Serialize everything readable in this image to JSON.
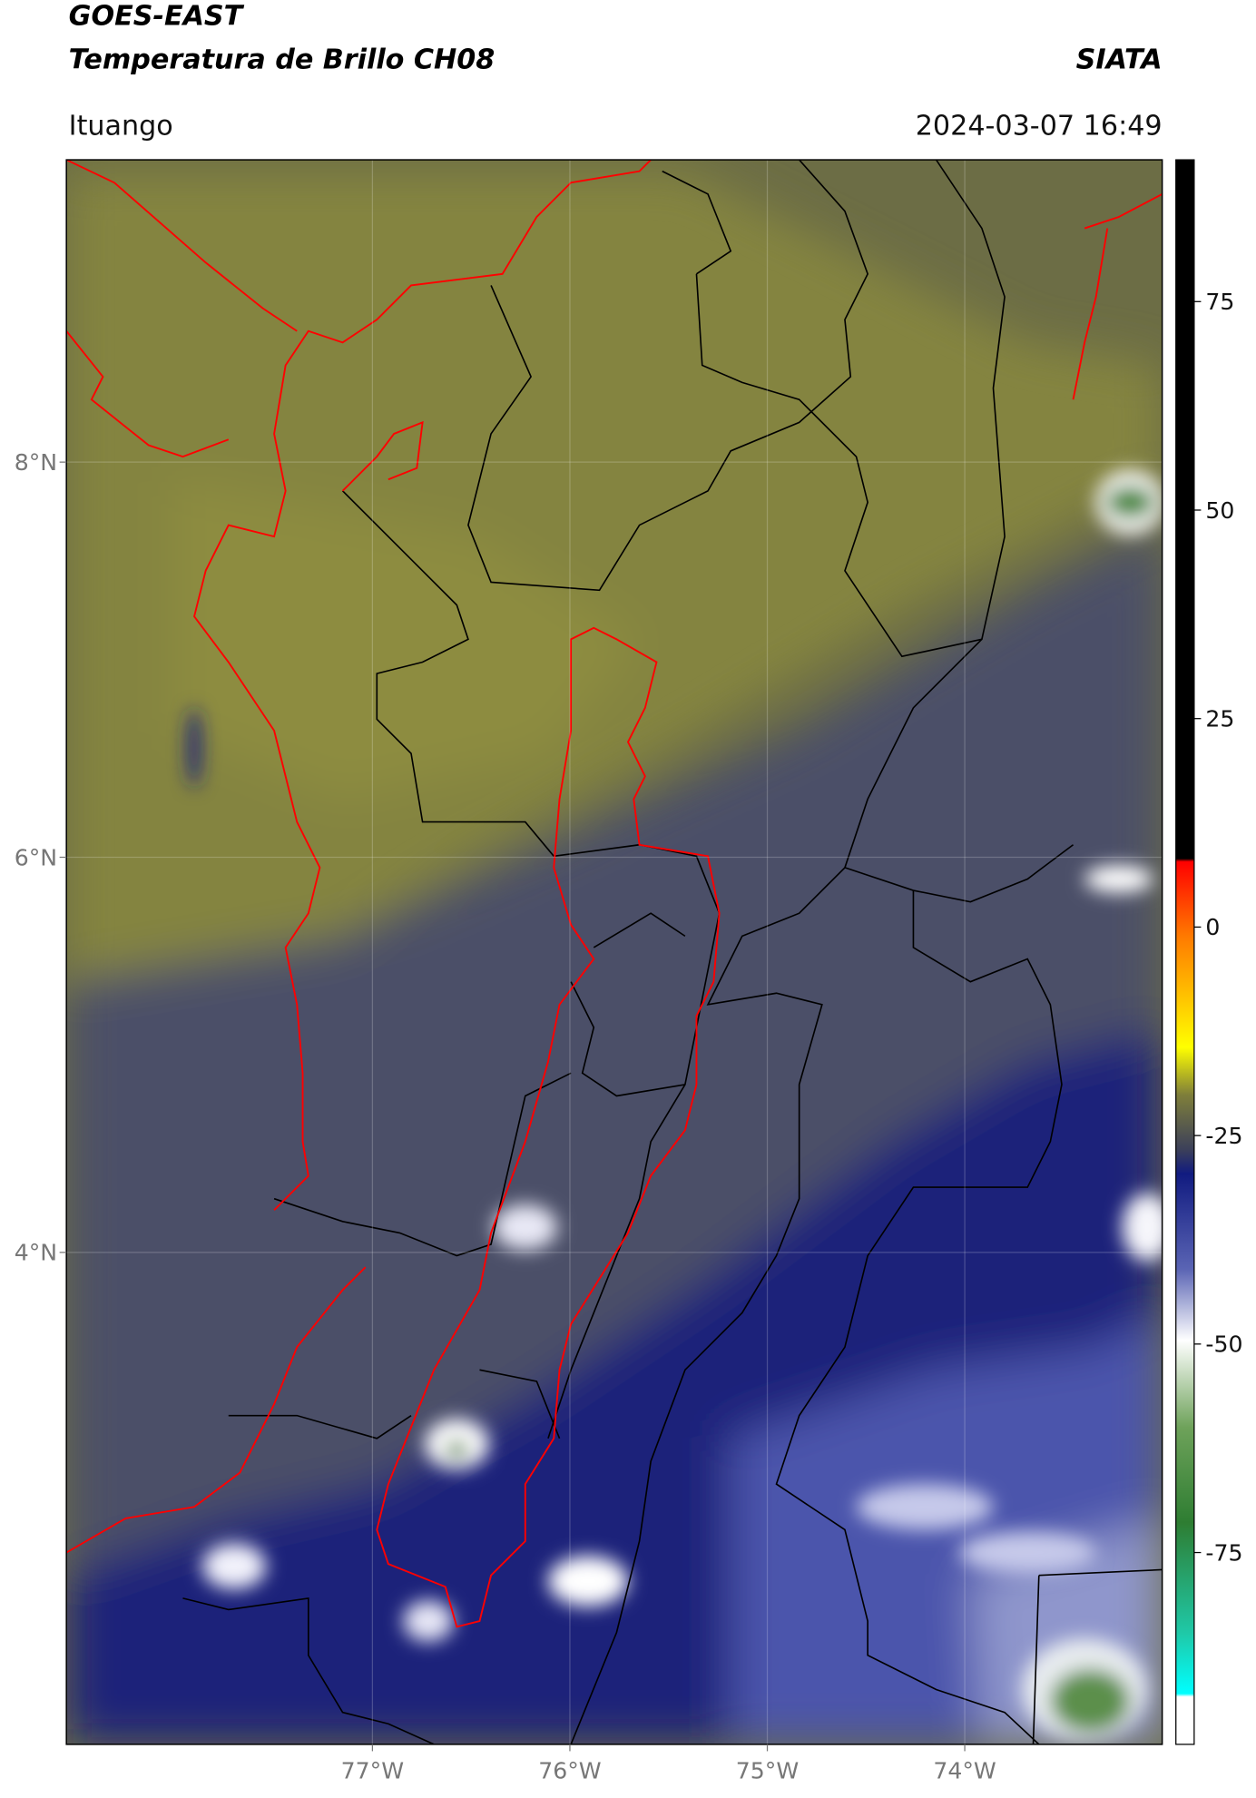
{
  "header": {
    "title": "GOES-EAST",
    "subtitle": "Temperatura de Brillo CH08",
    "brand": "SIATA",
    "location": "Ituango",
    "timestamp": "2024-03-07 16:49"
  },
  "map": {
    "xlim": [
      -78.55,
      -73.0
    ],
    "ylim": [
      1.51,
      9.53
    ],
    "xticks": [
      {
        "value": -77,
        "label": "77°W"
      },
      {
        "value": -76,
        "label": "76°W"
      },
      {
        "value": -75,
        "label": "75°W"
      },
      {
        "value": -74,
        "label": "74°W"
      }
    ],
    "yticks": [
      {
        "value": 8,
        "label": "8°N"
      },
      {
        "value": 6,
        "label": "6°N"
      },
      {
        "value": 4,
        "label": "4°N"
      }
    ],
    "grid": true
  },
  "colorbar": {
    "ylim": [
      -98,
      92
    ],
    "yticks": [
      75,
      50,
      25,
      0,
      -25,
      -50,
      -75
    ]
  }
}
